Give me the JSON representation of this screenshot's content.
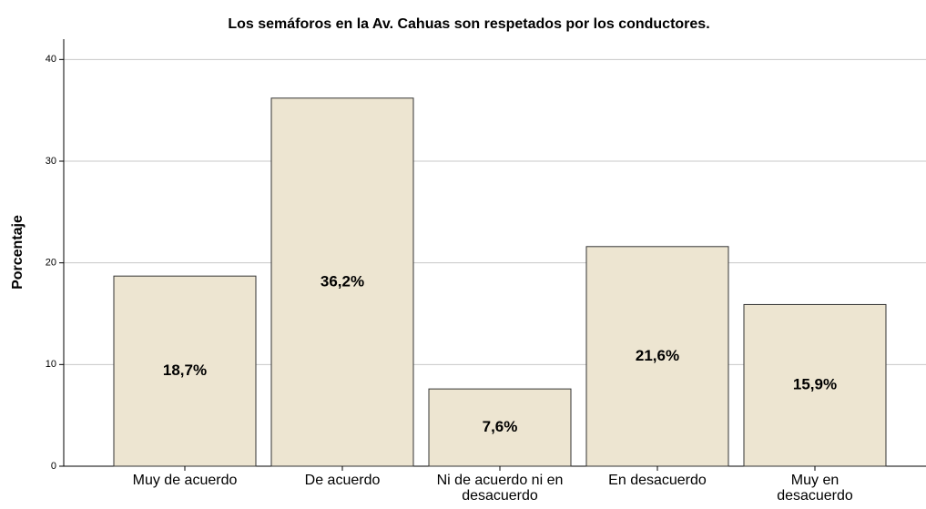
{
  "chart_data": {
    "type": "bar",
    "title": "Los semáforos en la Av. Cahuas son respetados por los conductores.",
    "y_label": "Porcentaje",
    "categories": [
      "Muy de acuerdo",
      "De acuerdo",
      "Ni de acuerdo ni en desacuerdo",
      "En desacuerdo",
      "Muy en desacuerdo"
    ],
    "values": [
      18.7,
      36.2,
      7.6,
      21.6,
      15.9
    ],
    "value_labels": [
      "18,7%",
      "36,2%",
      "7,6%",
      "21,6%",
      "15,9%"
    ],
    "color": "#ede5d1",
    "ylim": [
      0,
      42
    ],
    "yticks": [
      0,
      10,
      20,
      30,
      40
    ],
    "grid": true
  }
}
